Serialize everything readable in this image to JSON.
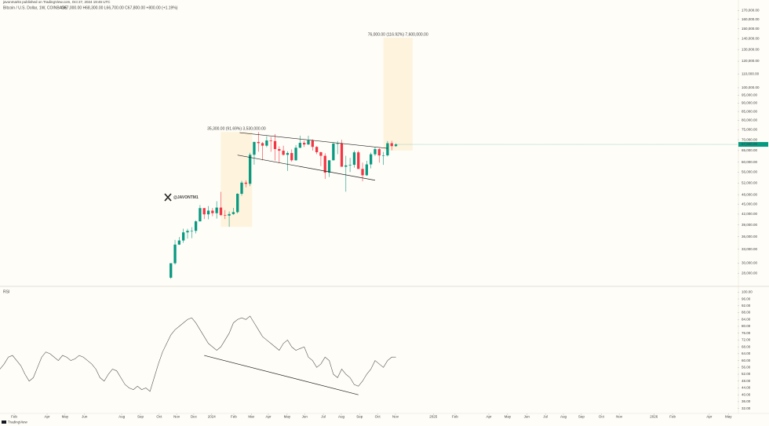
{
  "header": {
    "author_line": "javonmarks published on TradingView.com, Oct 27, 2024 19:46 UTC",
    "footer": "TradingView"
  },
  "chart_data": [
    {
      "type": "candlestick",
      "title": "Bitcoin / U.S. Dollar, 1W, COINBASE",
      "subtitle": "O67,000.00 H68,300.00 L66,700.00 C67,800.00 +800.00 (+1.19%)",
      "watermark": "@JAVONTM1",
      "log_scale": true,
      "grid": false,
      "up_color": "#089981",
      "down_color": "#f23645",
      "xlim": [
        0,
        177
      ],
      "ylim": [
        26000,
        175000
      ],
      "yticks": [
        {
          "value": 170000,
          "label": "170,000.00"
        },
        {
          "value": 160000,
          "label": "160,000.00"
        },
        {
          "value": 150000,
          "label": "150,000.00"
        },
        {
          "value": 140000,
          "label": "140,000.00"
        },
        {
          "value": 130000,
          "label": "130,000.00"
        },
        {
          "value": 120000,
          "label": "120,000.00"
        },
        {
          "value": 110000,
          "label": "110,000.00"
        },
        {
          "value": 100000,
          "label": "100,000.00"
        },
        {
          "value": 95000,
          "label": "95,000.00"
        },
        {
          "value": 90000,
          "label": "90,000.00"
        },
        {
          "value": 85000,
          "label": "85,000.00"
        },
        {
          "value": 80000,
          "label": "80,000.00"
        },
        {
          "value": 75000,
          "label": "75,000.00"
        },
        {
          "value": 70000,
          "label": "70,000.00"
        },
        {
          "value": 65000,
          "label": "65,000.00"
        },
        {
          "value": 60000,
          "label": "60,000.00"
        },
        {
          "value": 56000,
          "label": "56,000.00"
        },
        {
          "value": 52000,
          "label": "52,000.00"
        },
        {
          "value": 48000,
          "label": "48,000.00"
        },
        {
          "value": 45000,
          "label": "45,000.00"
        },
        {
          "value": 42000,
          "label": "42,000.00"
        },
        {
          "value": 39000,
          "label": "39,000.00"
        },
        {
          "value": 36000,
          "label": "36,000.00"
        },
        {
          "value": 33000,
          "label": "33,000.00"
        },
        {
          "value": 30000,
          "label": "30,000.00"
        },
        {
          "value": 28000,
          "label": "28,000.00"
        }
      ],
      "x": [
        41,
        42,
        43,
        44,
        45,
        46,
        47,
        48,
        49,
        50,
        51,
        52,
        53,
        54,
        55,
        56,
        57,
        58,
        59,
        60,
        61,
        62,
        63,
        64,
        65,
        66,
        67,
        68,
        69,
        70,
        71,
        72,
        73,
        74,
        75,
        76,
        77,
        78,
        79,
        80,
        81,
        82,
        83,
        84,
        85,
        86,
        87,
        88,
        89,
        90,
        91,
        92,
        93,
        94,
        95
      ],
      "open": [
        27150,
        29980,
        34080,
        35050,
        37060,
        37450,
        37450,
        39970,
        43780,
        41940,
        43020,
        42280,
        43940,
        41730,
        41580,
        42030,
        42580,
        48300,
        52140,
        51730,
        63130,
        68950,
        68390,
        67210,
        69650,
        69360,
        65660,
        64940,
        63120,
        63900,
        60800,
        66270,
        68520,
        67760,
        69650,
        66650,
        64250,
        62700,
        55850,
        60800,
        68200,
        68250,
        58160,
        58700,
        58940,
        64200,
        57300,
        54850,
        59100,
        63350,
        65630,
        62850,
        62900,
        68350,
        67000
      ],
      "high": [
        30000,
        35200,
        35900,
        38000,
        37980,
        38400,
        40250,
        44700,
        43800,
        44400,
        43800,
        45900,
        48970,
        43200,
        42800,
        43850,
        48500,
        52800,
        52980,
        64000,
        69000,
        73800,
        68900,
        71760,
        71300,
        72800,
        66900,
        67200,
        64700,
        65500,
        67500,
        71950,
        69600,
        71950,
        70200,
        66950,
        64500,
        63800,
        60000,
        68400,
        69400,
        70000,
        62700,
        61800,
        65000,
        64900,
        59800,
        60600,
        64100,
        66500,
        66100,
        64400,
        69400,
        69500,
        68300
      ],
      "low": [
        26950,
        29700,
        34000,
        34500,
        35500,
        35600,
        36800,
        39970,
        40600,
        40550,
        41400,
        40750,
        41500,
        40600,
        38500,
        41800,
        42200,
        47700,
        50500,
        50900,
        59000,
        64500,
        60800,
        66500,
        64500,
        60700,
        59600,
        62800,
        56500,
        60200,
        60600,
        66100,
        66600,
        67600,
        65000,
        63400,
        58400,
        53500,
        54200,
        60700,
        63400,
        58400,
        49000,
        56100,
        57800,
        57200,
        52600,
        54600,
        57500,
        62600,
        59800,
        58900,
        62400,
        65100,
        66700
      ],
      "close": [
        29980,
        34080,
        35050,
        37060,
        37450,
        37450,
        39970,
        43780,
        41940,
        43020,
        42280,
        43940,
        41730,
        41580,
        42030,
        42580,
        48300,
        52140,
        51730,
        63130,
        68950,
        68390,
        67210,
        69650,
        69360,
        65660,
        64940,
        63120,
        63900,
        60800,
        66270,
        68520,
        67760,
        69650,
        66650,
        64250,
        62700,
        55850,
        60800,
        68200,
        68250,
        58160,
        58700,
        58940,
        64200,
        57300,
        54850,
        59100,
        63350,
        65630,
        62850,
        62900,
        68350,
        67000,
        67800
      ],
      "price_tag": {
        "value": 67800,
        "label": "67,800.00"
      },
      "trendlines": [
        {
          "x": [
            57.5,
            93
          ],
          "y": [
            73500,
            66000
          ]
        },
        {
          "x": [
            57,
            90
          ],
          "y": [
            63000,
            53000
          ]
        }
      ],
      "ranges": [
        {
          "x": [
            53,
            60.5
          ],
          "y": [
            38500,
            73800
          ],
          "label": "35,300.00 (91.69%) 3,530,000.00"
        },
        {
          "x": [
            92,
            99
          ],
          "y": [
            65000,
            141000
          ],
          "label": "76,000.00 (116.92%) 7,600,000.00"
        }
      ]
    },
    {
      "type": "line",
      "title": "RSI",
      "color": "#555555",
      "grid": false,
      "xlim": [
        0,
        177
      ],
      "ylim": [
        30,
        102
      ],
      "yticks": [
        {
          "value": 100,
          "label": "100.00"
        },
        {
          "value": 96,
          "label": "96.00"
        },
        {
          "value": 92,
          "label": "92.00"
        },
        {
          "value": 88,
          "label": "88.00"
        },
        {
          "value": 84,
          "label": "84.00"
        },
        {
          "value": 80,
          "label": "80.00"
        },
        {
          "value": 76,
          "label": "76.00"
        },
        {
          "value": 72,
          "label": "72.00"
        },
        {
          "value": 68,
          "label": "68.00"
        },
        {
          "value": 64,
          "label": "64.00"
        },
        {
          "value": 60,
          "label": "60.00"
        },
        {
          "value": 56,
          "label": "56.00"
        },
        {
          "value": 52,
          "label": "52.00"
        },
        {
          "value": 48,
          "label": "48.00"
        },
        {
          "value": 44,
          "label": "44.00"
        },
        {
          "value": 40,
          "label": "40.00"
        },
        {
          "value": 36,
          "label": "36.00"
        },
        {
          "value": 32,
          "label": "32.00"
        }
      ],
      "xticks": [
        {
          "value": 3.4,
          "label": "Feb"
        },
        {
          "value": 11.3,
          "label": "Apr"
        },
        {
          "value": 15.6,
          "label": "May"
        },
        {
          "value": 20.3,
          "label": "Jun"
        },
        {
          "value": 29.2,
          "label": "Aug"
        },
        {
          "value": 33.7,
          "label": "Sep"
        },
        {
          "value": 38.2,
          "label": "Oct"
        },
        {
          "value": 42.4,
          "label": "Nov"
        },
        {
          "value": 46.5,
          "label": "Dec"
        },
        {
          "value": 50.8,
          "label": "2024"
        },
        {
          "value": 56.1,
          "label": "Feb"
        },
        {
          "value": 60.3,
          "label": "Mar"
        },
        {
          "value": 64.4,
          "label": "Apr"
        },
        {
          "value": 68.9,
          "label": "May"
        },
        {
          "value": 73.1,
          "label": "Jun"
        },
        {
          "value": 77.6,
          "label": "Jul"
        },
        {
          "value": 81.9,
          "label": "Aug"
        },
        {
          "value": 86.3,
          "label": "Sep"
        },
        {
          "value": 90.6,
          "label": "Oct"
        },
        {
          "value": 94.9,
          "label": "Nov"
        },
        {
          "value": 104,
          "label": "2025"
        },
        {
          "value": 109.2,
          "label": "Feb"
        },
        {
          "value": 117.3,
          "label": "Apr"
        },
        {
          "value": 121.8,
          "label": "May"
        },
        {
          "value": 126.4,
          "label": "Jun"
        },
        {
          "value": 130.9,
          "label": "Jul"
        },
        {
          "value": 135.2,
          "label": "Aug"
        },
        {
          "value": 139.5,
          "label": "Sep"
        },
        {
          "value": 144.3,
          "label": "Oct"
        },
        {
          "value": 148.6,
          "label": "Nov"
        },
        {
          "value": 156.9,
          "label": "2026"
        },
        {
          "value": 161.4,
          "label": "Feb"
        },
        {
          "value": 170.2,
          "label": "Apr"
        },
        {
          "value": 174.8,
          "label": "May"
        }
      ],
      "x": [
        0,
        1,
        2,
        3,
        4,
        5,
        6,
        7,
        8,
        9,
        10,
        11,
        12,
        13,
        14,
        15,
        16,
        17,
        18,
        19,
        20,
        21,
        22,
        23,
        24,
        25,
        26,
        27,
        28,
        29,
        30,
        31,
        32,
        33,
        34,
        35,
        36,
        37,
        38,
        39,
        40,
        41,
        42,
        43,
        44,
        45,
        46,
        47,
        48,
        49,
        50,
        51,
        52,
        53,
        54,
        55,
        56,
        57,
        58,
        59,
        60,
        61,
        62,
        63,
        64,
        65,
        66,
        67,
        68,
        69,
        70,
        71,
        72,
        73,
        74,
        75,
        76,
        77,
        78,
        79,
        80,
        81,
        82,
        83,
        84,
        85,
        86,
        87,
        88,
        89,
        90,
        91,
        92,
        93,
        94,
        95
      ],
      "values": [
        55,
        58,
        62,
        63,
        60,
        57,
        52,
        48,
        50,
        56,
        62,
        65,
        64,
        62,
        60,
        63,
        62,
        60,
        61,
        63,
        62,
        60,
        58,
        55,
        50,
        48,
        52,
        55,
        54,
        50,
        46,
        44,
        43,
        45,
        43,
        44,
        42,
        50,
        58,
        65,
        70,
        75,
        78,
        80,
        82,
        84,
        85,
        82,
        78,
        74,
        70,
        68,
        66,
        68,
        72,
        76,
        82,
        84,
        85,
        84,
        86,
        82,
        78,
        74,
        72,
        70,
        68,
        66,
        70,
        72,
        68,
        66,
        67,
        68,
        62,
        60,
        56,
        58,
        62,
        60,
        52,
        50,
        55,
        52,
        50,
        46,
        45,
        48,
        52,
        55,
        60,
        58,
        56,
        60,
        62,
        62
      ],
      "trendlines": [
        {
          "x": [
            49,
            86
          ],
          "y": [
            63,
            40
          ]
        }
      ]
    }
  ]
}
